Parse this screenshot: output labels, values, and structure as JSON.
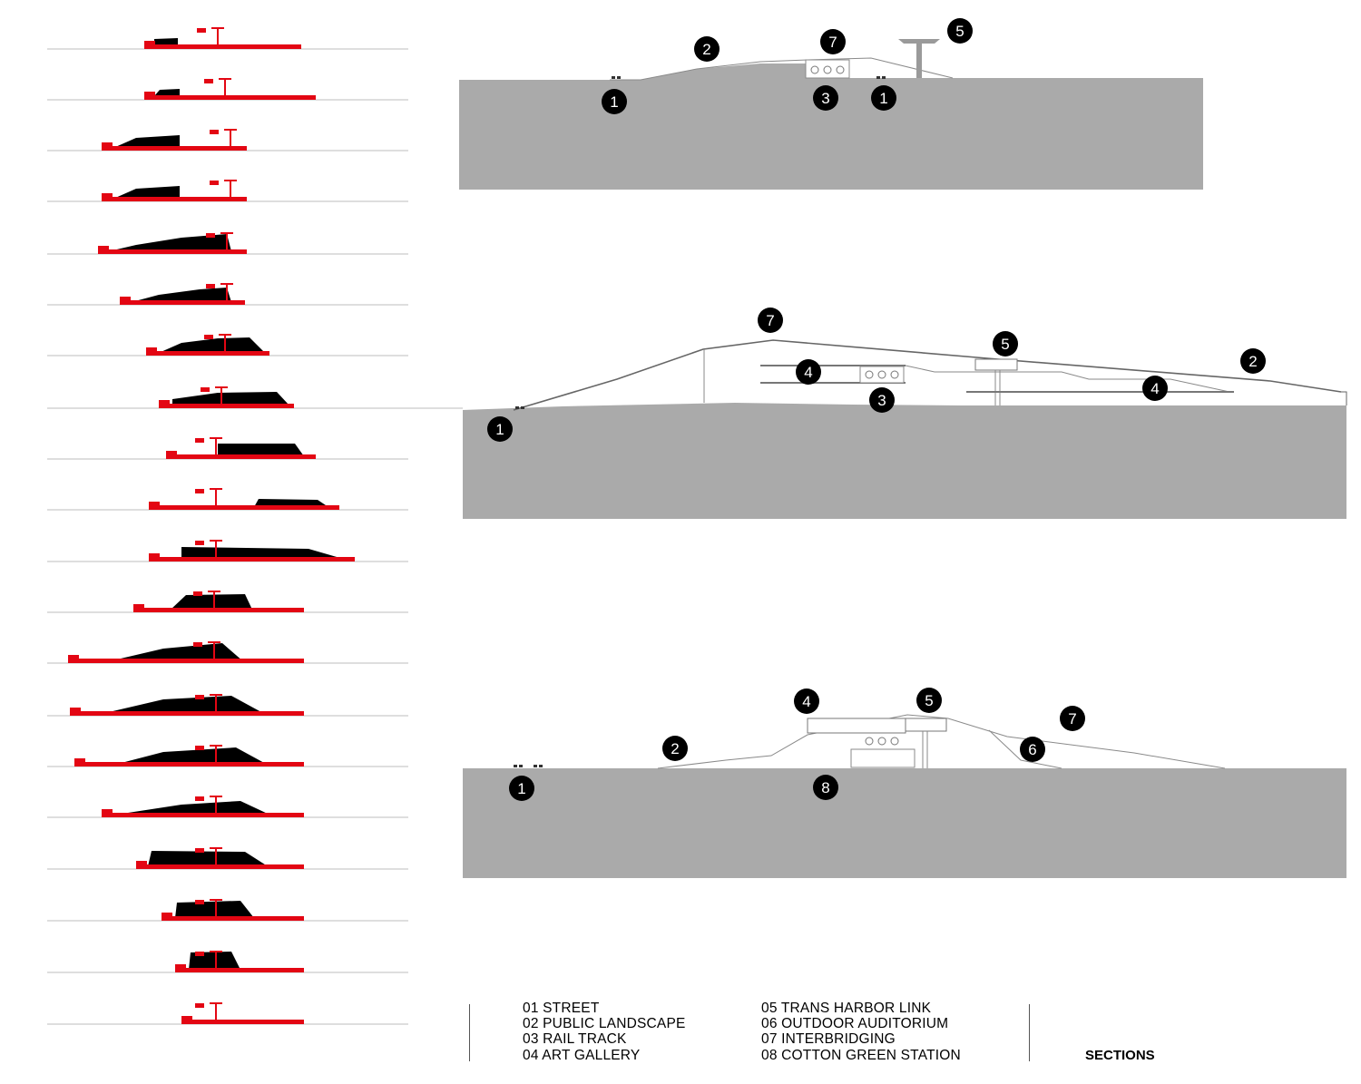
{
  "colors": {
    "ground": "#aaaaaa",
    "accent_red": "#e30613",
    "mass": "#000000",
    "line": "#8a8a8a"
  },
  "sections": [
    {
      "callouts": [
        {
          "label": "1"
        },
        {
          "label": "1"
        },
        {
          "label": "2"
        },
        {
          "label": "3"
        },
        {
          "label": "5"
        },
        {
          "label": "7"
        }
      ]
    },
    {
      "callouts": [
        {
          "label": "1"
        },
        {
          "label": "2"
        },
        {
          "label": "3"
        },
        {
          "label": "4"
        },
        {
          "label": "4"
        },
        {
          "label": "5"
        },
        {
          "label": "7"
        }
      ]
    },
    {
      "callouts": [
        {
          "label": "1"
        },
        {
          "label": "2"
        },
        {
          "label": "4"
        },
        {
          "label": "5"
        },
        {
          "label": "6"
        },
        {
          "label": "7"
        },
        {
          "label": "8"
        }
      ]
    }
  ],
  "legend": {
    "column_1": [
      "01 STREET",
      "02 PUBLIC LANDSCAPE",
      "03 RAIL TRACK",
      "04 ART GALLERY"
    ],
    "column_2": [
      "05 TRANS HARBOR LINK",
      "06 OUTDOOR AUDITORIUM",
      "07 INTERBRIDGING",
      "08 COTTON GREEN STATION"
    ]
  },
  "title": "SECTIONS"
}
